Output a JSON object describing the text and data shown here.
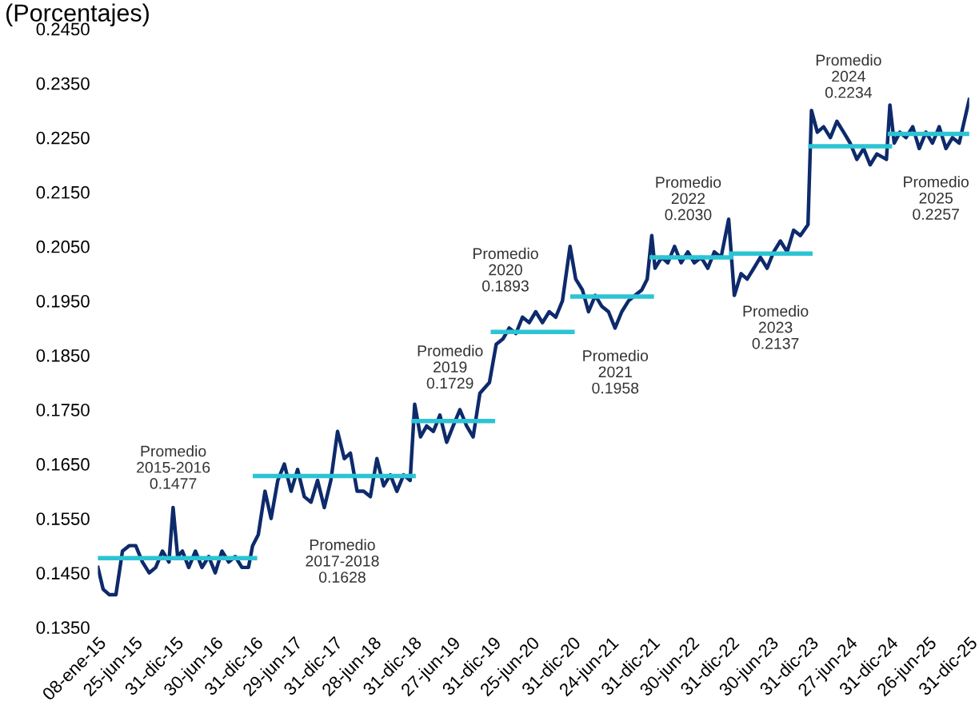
{
  "chart_data": {
    "type": "line",
    "title": "(Porcentajes)",
    "ylim": [
      0.135,
      0.245
    ],
    "yticks": [
      {
        "value": 0.135,
        "label": "0.1350"
      },
      {
        "value": 0.145,
        "label": "0.1450"
      },
      {
        "value": 0.155,
        "label": "0.1550"
      },
      {
        "value": 0.165,
        "label": "0.1650"
      },
      {
        "value": 0.175,
        "label": "0.1750"
      },
      {
        "value": 0.185,
        "label": "0.1850"
      },
      {
        "value": 0.195,
        "label": "0.1950"
      },
      {
        "value": 0.205,
        "label": "0.2050"
      },
      {
        "value": 0.215,
        "label": "0.2150"
      },
      {
        "value": 0.225,
        "label": "0.2250"
      },
      {
        "value": 0.235,
        "label": "0.2350"
      },
      {
        "value": 0.245,
        "label": "0.2450"
      }
    ],
    "xlim": [
      "2015-01-08",
      "2025-12-31"
    ],
    "xticks": [
      {
        "value": "2015-01-08",
        "label": "08-ene-15"
      },
      {
        "value": "2015-06-25",
        "label": "25-jun-15"
      },
      {
        "value": "2015-12-31",
        "label": "31-dic-15"
      },
      {
        "value": "2016-06-30",
        "label": "30-jun-16"
      },
      {
        "value": "2016-12-31",
        "label": "31-dic-16"
      },
      {
        "value": "2017-06-29",
        "label": "29-jun-17"
      },
      {
        "value": "2017-12-31",
        "label": "31-dic-17"
      },
      {
        "value": "2018-06-28",
        "label": "28-jun-18"
      },
      {
        "value": "2018-12-31",
        "label": "31-dic-18"
      },
      {
        "value": "2019-06-27",
        "label": "27-jun-19"
      },
      {
        "value": "2019-12-31",
        "label": "31-dic-19"
      },
      {
        "value": "2020-06-25",
        "label": "25-jun-20"
      },
      {
        "value": "2020-12-31",
        "label": "31-dic-20"
      },
      {
        "value": "2021-06-24",
        "label": "24-jun-21"
      },
      {
        "value": "2021-12-31",
        "label": "31-dic-21"
      },
      {
        "value": "2022-06-30",
        "label": "30-jun-22"
      },
      {
        "value": "2022-12-31",
        "label": "31-dic-22"
      },
      {
        "value": "2023-06-30",
        "label": "30-jun-23"
      },
      {
        "value": "2023-12-31",
        "label": "31-dic-23"
      },
      {
        "value": "2024-06-27",
        "label": "27-jun-24"
      },
      {
        "value": "2024-12-31",
        "label": "31-dic-24"
      },
      {
        "value": "2025-06-26",
        "label": "26-jun-25"
      },
      {
        "value": "2025-12-31",
        "label": "31-dic-25"
      }
    ],
    "grid": false,
    "marker": "none",
    "line_style": "solid",
    "series": [
      {
        "color": "#0d2a6b",
        "x": [
          "2015-01-08",
          "2015-02-01",
          "2015-03-01",
          "2015-04-01",
          "2015-05-01",
          "2015-06-01",
          "2015-07-01",
          "2015-08-01",
          "2015-09-01",
          "2015-10-01",
          "2015-11-01",
          "2015-12-01",
          "2015-12-20",
          "2016-01-10",
          "2016-02-01",
          "2016-03-01",
          "2016-04-01",
          "2016-05-01",
          "2016-06-01",
          "2016-07-01",
          "2016-08-01",
          "2016-09-01",
          "2016-10-01",
          "2016-11-01",
          "2016-12-01",
          "2016-12-20",
          "2017-01-15",
          "2017-02-15",
          "2017-03-15",
          "2017-04-15",
          "2017-05-15",
          "2017-06-15",
          "2017-07-15",
          "2017-08-15",
          "2017-09-15",
          "2017-10-15",
          "2017-11-15",
          "2017-12-15",
          "2018-01-15",
          "2018-02-15",
          "2018-03-15",
          "2018-04-15",
          "2018-05-15",
          "2018-06-15",
          "2018-07-15",
          "2018-08-15",
          "2018-09-15",
          "2018-10-15",
          "2018-11-15",
          "2018-12-15",
          "2019-01-05",
          "2019-02-01",
          "2019-03-01",
          "2019-04-01",
          "2019-05-01",
          "2019-06-01",
          "2019-07-01",
          "2019-08-01",
          "2019-09-01",
          "2019-10-01",
          "2019-11-01",
          "2019-12-15",
          "2020-01-15",
          "2020-02-15",
          "2020-03-15",
          "2020-04-15",
          "2020-05-15",
          "2020-06-15",
          "2020-07-15",
          "2020-08-15",
          "2020-09-15",
          "2020-10-15",
          "2020-11-15",
          "2020-12-20",
          "2021-01-15",
          "2021-02-15",
          "2021-03-15",
          "2021-04-15",
          "2021-05-15",
          "2021-06-15",
          "2021-07-15",
          "2021-08-15",
          "2021-09-15",
          "2021-10-15",
          "2021-11-15",
          "2021-12-10",
          "2021-12-31",
          "2022-01-15",
          "2022-02-15",
          "2022-03-15",
          "2022-04-15",
          "2022-05-15",
          "2022-06-15",
          "2022-07-15",
          "2022-08-15",
          "2022-09-15",
          "2022-10-15",
          "2022-11-15",
          "2022-12-20",
          "2023-01-15",
          "2023-02-15",
          "2023-03-15",
          "2023-04-15",
          "2023-05-15",
          "2023-06-15",
          "2023-07-15",
          "2023-08-15",
          "2023-09-15",
          "2023-10-15",
          "2023-11-15",
          "2023-12-20",
          "2024-01-05",
          "2024-02-01",
          "2024-03-01",
          "2024-04-01",
          "2024-05-01",
          "2024-06-01",
          "2024-07-01",
          "2024-08-01",
          "2024-09-01",
          "2024-10-01",
          "2024-11-01",
          "2024-12-15",
          "2024-12-31",
          "2025-01-20",
          "2025-02-15",
          "2025-03-15",
          "2025-04-15",
          "2025-05-15",
          "2025-06-15",
          "2025-07-15",
          "2025-08-15",
          "2025-09-15",
          "2025-10-15",
          "2025-11-15",
          "2025-12-31"
        ],
        "values": [
          0.146,
          0.142,
          0.141,
          0.141,
          0.149,
          0.15,
          0.15,
          0.147,
          0.145,
          0.146,
          0.149,
          0.147,
          0.157,
          0.148,
          0.149,
          0.146,
          0.149,
          0.146,
          0.148,
          0.145,
          0.149,
          0.147,
          0.148,
          0.146,
          0.146,
          0.15,
          0.152,
          0.16,
          0.155,
          0.162,
          0.165,
          0.16,
          0.164,
          0.159,
          0.158,
          0.162,
          0.157,
          0.162,
          0.171,
          0.166,
          0.167,
          0.16,
          0.16,
          0.159,
          0.166,
          0.161,
          0.163,
          0.16,
          0.163,
          0.162,
          0.176,
          0.17,
          0.172,
          0.171,
          0.174,
          0.169,
          0.172,
          0.175,
          0.172,
          0.17,
          0.178,
          0.18,
          0.187,
          0.188,
          0.19,
          0.189,
          0.192,
          0.191,
          0.193,
          0.191,
          0.193,
          0.192,
          0.195,
          0.205,
          0.199,
          0.197,
          0.193,
          0.196,
          0.194,
          0.193,
          0.19,
          0.193,
          0.195,
          0.196,
          0.197,
          0.199,
          0.207,
          0.201,
          0.203,
          0.202,
          0.205,
          0.202,
          0.204,
          0.202,
          0.203,
          0.201,
          0.204,
          0.203,
          0.21,
          0.196,
          0.2,
          0.199,
          0.201,
          0.203,
          0.201,
          0.204,
          0.206,
          0.204,
          0.208,
          0.207,
          0.209,
          0.23,
          0.226,
          0.227,
          0.225,
          0.228,
          0.226,
          0.224,
          0.221,
          0.223,
          0.22,
          0.222,
          0.221,
          0.231,
          0.224,
          0.226,
          0.225,
          0.227,
          0.223,
          0.226,
          0.224,
          0.227,
          0.223,
          0.225,
          0.224,
          0.232
        ]
      },
      {
        "color": "#2cc4d4",
        "x": [
          "2015-01-08",
          "2016-12-31"
        ],
        "values": [
          0.1477,
          0.1477
        ]
      },
      {
        "color": "#2cc4d4",
        "x": [
          "2016-12-31",
          "2018-12-31"
        ],
        "values": [
          0.1628,
          0.1628
        ]
      },
      {
        "color": "#2cc4d4",
        "x": [
          "2018-12-31",
          "2019-12-31"
        ],
        "values": [
          0.1729,
          0.1729
        ]
      },
      {
        "color": "#2cc4d4",
        "x": [
          "2019-12-31",
          "2020-12-31"
        ],
        "values": [
          0.1893,
          0.1893
        ]
      },
      {
        "color": "#2cc4d4",
        "x": [
          "2020-12-31",
          "2021-12-31"
        ],
        "values": [
          0.1958,
          0.1958
        ]
      },
      {
        "color": "#2cc4d4",
        "x": [
          "2021-12-31",
          "2022-12-31"
        ],
        "values": [
          0.203,
          0.203
        ]
      },
      {
        "color": "#2cc4d4",
        "x": [
          "2022-12-31",
          "2023-12-31"
        ],
        "values": [
          0.2037,
          0.2037
        ]
      },
      {
        "color": "#2cc4d4",
        "x": [
          "2023-12-31",
          "2024-12-31"
        ],
        "values": [
          0.2234,
          0.2234
        ]
      },
      {
        "color": "#2cc4d4",
        "x": [
          "2024-12-31",
          "2025-12-31"
        ],
        "values": [
          0.2257,
          0.2257
        ]
      }
    ],
    "annotations": [
      "Promedio\n2015-2016\n0.1477",
      "Promedio\n2017-2018\n0.1628",
      "Promedio\n2019\n0.1729",
      "Promedio\n2020\n0.1893",
      "Promedio\n2021\n0.1958",
      "Promedio\n2022\n0.2030",
      "Promedio\n2023\n0.2137",
      "Promedio\n2024\n0.2234",
      "Promedio\n2025\n0.2257"
    ]
  }
}
